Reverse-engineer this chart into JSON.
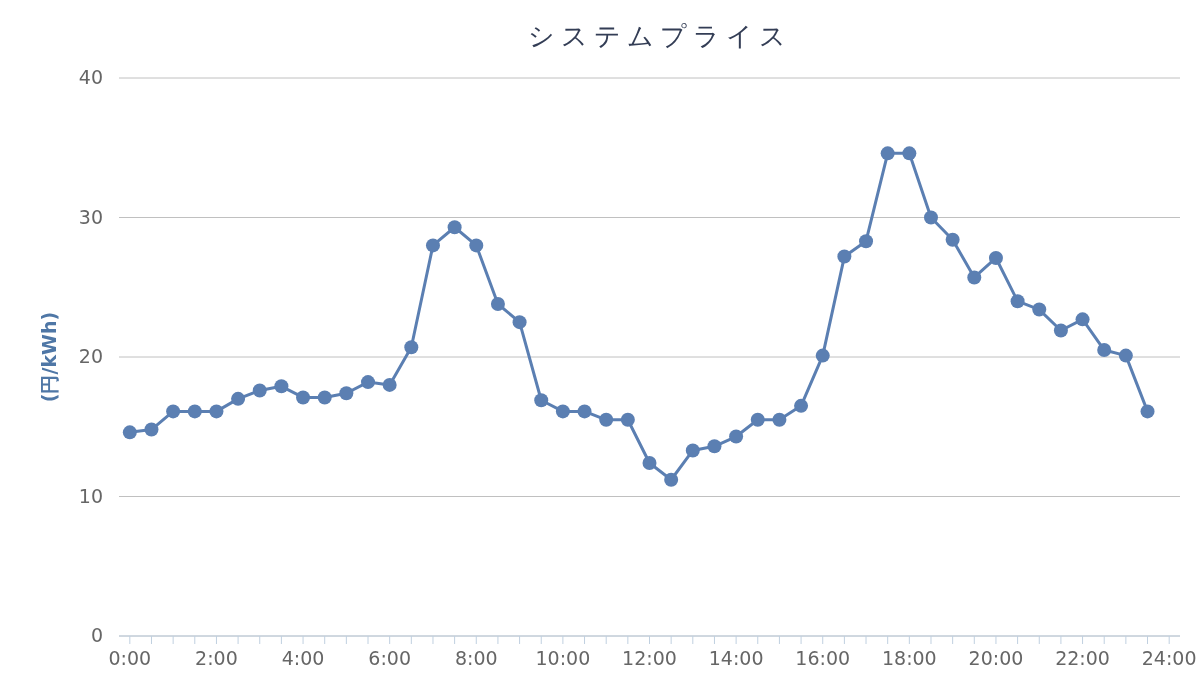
{
  "chart_data": {
    "type": "line",
    "title": "システムプライス",
    "ylabel": "(円/kWh)",
    "x": [
      0,
      0.5,
      1,
      1.5,
      2,
      2.5,
      3,
      3.5,
      4,
      4.5,
      5,
      5.5,
      6,
      6.5,
      7,
      7.5,
      8,
      8.5,
      9,
      9.5,
      10,
      10.5,
      11,
      11.5,
      12,
      12.5,
      13,
      13.5,
      14,
      14.5,
      15,
      15.5,
      16,
      16.5,
      17,
      17.5,
      18,
      18.5,
      19,
      19.5,
      20,
      20.5,
      21,
      21.5,
      22,
      22.5,
      23,
      23.5
    ],
    "series": [
      {
        "color": "#5b7fb2",
        "values": [
          14.6,
          14.8,
          16.1,
          16.1,
          16.1,
          17.0,
          17.6,
          17.9,
          17.1,
          17.1,
          17.4,
          18.2,
          18.0,
          20.7,
          28.0,
          29.3,
          28.0,
          23.8,
          22.5,
          16.9,
          16.1,
          16.1,
          15.5,
          15.5,
          12.4,
          11.2,
          13.3,
          13.6,
          14.3,
          15.5,
          15.5,
          16.5,
          20.1,
          27.2,
          28.3,
          34.6,
          34.6,
          30.0,
          28.4,
          25.7,
          27.1,
          24.0,
          23.4,
          21.9,
          22.7,
          20.5,
          20.1,
          16.1
        ]
      }
    ],
    "xlim": [
      -0.25,
      24.25
    ],
    "xticks": [
      {
        "value": 0,
        "label": "0:00"
      },
      {
        "value": 0.5,
        "label": null
      },
      {
        "value": 1,
        "label": null
      },
      {
        "value": 1.5,
        "label": null
      },
      {
        "value": 2,
        "label": "2:00"
      },
      {
        "value": 2.5,
        "label": null
      },
      {
        "value": 3,
        "label": null
      },
      {
        "value": 3.5,
        "label": null
      },
      {
        "value": 4,
        "label": "4:00"
      },
      {
        "value": 4.5,
        "label": null
      },
      {
        "value": 5,
        "label": null
      },
      {
        "value": 5.5,
        "label": null
      },
      {
        "value": 6,
        "label": "6:00"
      },
      {
        "value": 6.5,
        "label": null
      },
      {
        "value": 7,
        "label": null
      },
      {
        "value": 7.5,
        "label": null
      },
      {
        "value": 8,
        "label": "8:00"
      },
      {
        "value": 8.5,
        "label": null
      },
      {
        "value": 9,
        "label": null
      },
      {
        "value": 9.5,
        "label": null
      },
      {
        "value": 10,
        "label": "10:00"
      },
      {
        "value": 10.5,
        "label": null
      },
      {
        "value": 11,
        "label": null
      },
      {
        "value": 11.5,
        "label": null
      },
      {
        "value": 12,
        "label": "12:00"
      },
      {
        "value": 12.5,
        "label": null
      },
      {
        "value": 13,
        "label": null
      },
      {
        "value": 13.5,
        "label": null
      },
      {
        "value": 14,
        "label": "14:00"
      },
      {
        "value": 14.5,
        "label": null
      },
      {
        "value": 15,
        "label": null
      },
      {
        "value": 15.5,
        "label": null
      },
      {
        "value": 16,
        "label": "16:00"
      },
      {
        "value": 16.5,
        "label": null
      },
      {
        "value": 17,
        "label": null
      },
      {
        "value": 17.5,
        "label": null
      },
      {
        "value": 18,
        "label": "18:00"
      },
      {
        "value": 18.5,
        "label": null
      },
      {
        "value": 19,
        "label": null
      },
      {
        "value": 19.5,
        "label": null
      },
      {
        "value": 20,
        "label": "20:00"
      },
      {
        "value": 20.5,
        "label": null
      },
      {
        "value": 21,
        "label": null
      },
      {
        "value": 21.5,
        "label": null
      },
      {
        "value": 22,
        "label": "22:00"
      },
      {
        "value": 22.5,
        "label": null
      },
      {
        "value": 23,
        "label": null
      },
      {
        "value": 23.5,
        "label": null
      },
      {
        "value": 24,
        "label": "24:00"
      }
    ],
    "ylim": [
      0,
      40
    ],
    "yticks": [
      0,
      10,
      20,
      30,
      40
    ],
    "grid": "y",
    "marker": "circle",
    "line_style": "solid"
  }
}
